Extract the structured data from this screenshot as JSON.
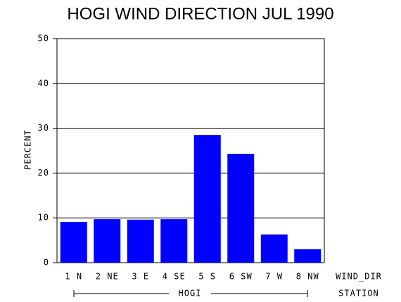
{
  "chart_data": {
    "type": "bar",
    "title": "HOGI WIND DIRECTION JUL 1990",
    "y_label": "PERCENT",
    "x_label": "WIND_DIR",
    "group_label": "STATION",
    "group": "HOGI",
    "categories": [
      "1 N",
      "2 NE",
      "3 E",
      "4 SE",
      "5 S",
      "6 SW",
      "7 W",
      "8 NW"
    ],
    "values": [
      9.1,
      9.7,
      9.6,
      9.7,
      28.5,
      24.3,
      6.3,
      3.0
    ],
    "color": "#0000ff",
    "ylim": [
      0,
      50
    ],
    "yticks": [
      0,
      10,
      20,
      30,
      40,
      50
    ],
    "grid": true
  }
}
